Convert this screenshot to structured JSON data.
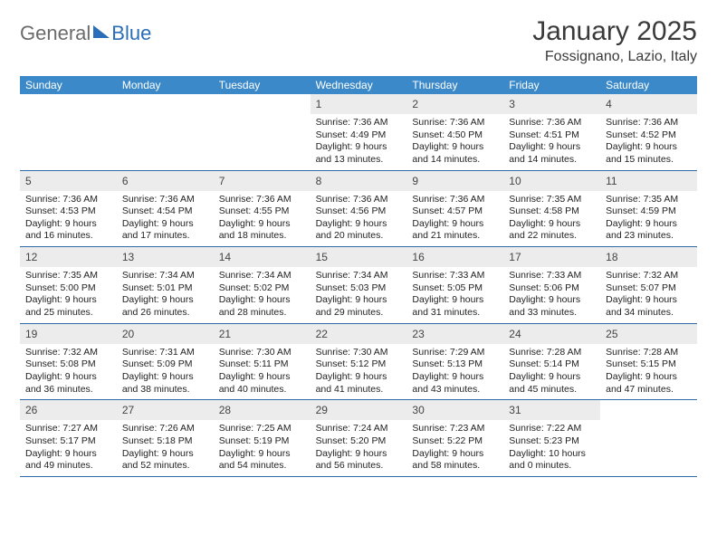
{
  "logo": {
    "word1": "General",
    "word2": "Blue"
  },
  "title": "January 2025",
  "subtitle": "Fossignano, Lazio, Italy",
  "colors": {
    "header_bg": "#3b89c9",
    "header_text": "#ffffff",
    "daynum_bg": "#ececec",
    "row_divider": "#2f6aa8",
    "logo_grey": "#6b6b6b",
    "logo_blue": "#2a6db8",
    "body_text": "#222222",
    "page_bg": "#ffffff"
  },
  "layout": {
    "columns": 7,
    "rows": 5,
    "cell_font_pt": 8,
    "header_font_pt": 9
  },
  "days_of_week": [
    "Sunday",
    "Monday",
    "Tuesday",
    "Wednesday",
    "Thursday",
    "Friday",
    "Saturday"
  ],
  "weeks": [
    [
      {
        "day": "",
        "sunrise": "",
        "sunset": "",
        "daylight": ""
      },
      {
        "day": "",
        "sunrise": "",
        "sunset": "",
        "daylight": ""
      },
      {
        "day": "",
        "sunrise": "",
        "sunset": "",
        "daylight": ""
      },
      {
        "day": "1",
        "sunrise": "Sunrise: 7:36 AM",
        "sunset": "Sunset: 4:49 PM",
        "daylight": "Daylight: 9 hours and 13 minutes."
      },
      {
        "day": "2",
        "sunrise": "Sunrise: 7:36 AM",
        "sunset": "Sunset: 4:50 PM",
        "daylight": "Daylight: 9 hours and 14 minutes."
      },
      {
        "day": "3",
        "sunrise": "Sunrise: 7:36 AM",
        "sunset": "Sunset: 4:51 PM",
        "daylight": "Daylight: 9 hours and 14 minutes."
      },
      {
        "day": "4",
        "sunrise": "Sunrise: 7:36 AM",
        "sunset": "Sunset: 4:52 PM",
        "daylight": "Daylight: 9 hours and 15 minutes."
      }
    ],
    [
      {
        "day": "5",
        "sunrise": "Sunrise: 7:36 AM",
        "sunset": "Sunset: 4:53 PM",
        "daylight": "Daylight: 9 hours and 16 minutes."
      },
      {
        "day": "6",
        "sunrise": "Sunrise: 7:36 AM",
        "sunset": "Sunset: 4:54 PM",
        "daylight": "Daylight: 9 hours and 17 minutes."
      },
      {
        "day": "7",
        "sunrise": "Sunrise: 7:36 AM",
        "sunset": "Sunset: 4:55 PM",
        "daylight": "Daylight: 9 hours and 18 minutes."
      },
      {
        "day": "8",
        "sunrise": "Sunrise: 7:36 AM",
        "sunset": "Sunset: 4:56 PM",
        "daylight": "Daylight: 9 hours and 20 minutes."
      },
      {
        "day": "9",
        "sunrise": "Sunrise: 7:36 AM",
        "sunset": "Sunset: 4:57 PM",
        "daylight": "Daylight: 9 hours and 21 minutes."
      },
      {
        "day": "10",
        "sunrise": "Sunrise: 7:35 AM",
        "sunset": "Sunset: 4:58 PM",
        "daylight": "Daylight: 9 hours and 22 minutes."
      },
      {
        "day": "11",
        "sunrise": "Sunrise: 7:35 AM",
        "sunset": "Sunset: 4:59 PM",
        "daylight": "Daylight: 9 hours and 23 minutes."
      }
    ],
    [
      {
        "day": "12",
        "sunrise": "Sunrise: 7:35 AM",
        "sunset": "Sunset: 5:00 PM",
        "daylight": "Daylight: 9 hours and 25 minutes."
      },
      {
        "day": "13",
        "sunrise": "Sunrise: 7:34 AM",
        "sunset": "Sunset: 5:01 PM",
        "daylight": "Daylight: 9 hours and 26 minutes."
      },
      {
        "day": "14",
        "sunrise": "Sunrise: 7:34 AM",
        "sunset": "Sunset: 5:02 PM",
        "daylight": "Daylight: 9 hours and 28 minutes."
      },
      {
        "day": "15",
        "sunrise": "Sunrise: 7:34 AM",
        "sunset": "Sunset: 5:03 PM",
        "daylight": "Daylight: 9 hours and 29 minutes."
      },
      {
        "day": "16",
        "sunrise": "Sunrise: 7:33 AM",
        "sunset": "Sunset: 5:05 PM",
        "daylight": "Daylight: 9 hours and 31 minutes."
      },
      {
        "day": "17",
        "sunrise": "Sunrise: 7:33 AM",
        "sunset": "Sunset: 5:06 PM",
        "daylight": "Daylight: 9 hours and 33 minutes."
      },
      {
        "day": "18",
        "sunrise": "Sunrise: 7:32 AM",
        "sunset": "Sunset: 5:07 PM",
        "daylight": "Daylight: 9 hours and 34 minutes."
      }
    ],
    [
      {
        "day": "19",
        "sunrise": "Sunrise: 7:32 AM",
        "sunset": "Sunset: 5:08 PM",
        "daylight": "Daylight: 9 hours and 36 minutes."
      },
      {
        "day": "20",
        "sunrise": "Sunrise: 7:31 AM",
        "sunset": "Sunset: 5:09 PM",
        "daylight": "Daylight: 9 hours and 38 minutes."
      },
      {
        "day": "21",
        "sunrise": "Sunrise: 7:30 AM",
        "sunset": "Sunset: 5:11 PM",
        "daylight": "Daylight: 9 hours and 40 minutes."
      },
      {
        "day": "22",
        "sunrise": "Sunrise: 7:30 AM",
        "sunset": "Sunset: 5:12 PM",
        "daylight": "Daylight: 9 hours and 41 minutes."
      },
      {
        "day": "23",
        "sunrise": "Sunrise: 7:29 AM",
        "sunset": "Sunset: 5:13 PM",
        "daylight": "Daylight: 9 hours and 43 minutes."
      },
      {
        "day": "24",
        "sunrise": "Sunrise: 7:28 AM",
        "sunset": "Sunset: 5:14 PM",
        "daylight": "Daylight: 9 hours and 45 minutes."
      },
      {
        "day": "25",
        "sunrise": "Sunrise: 7:28 AM",
        "sunset": "Sunset: 5:15 PM",
        "daylight": "Daylight: 9 hours and 47 minutes."
      }
    ],
    [
      {
        "day": "26",
        "sunrise": "Sunrise: 7:27 AM",
        "sunset": "Sunset: 5:17 PM",
        "daylight": "Daylight: 9 hours and 49 minutes."
      },
      {
        "day": "27",
        "sunrise": "Sunrise: 7:26 AM",
        "sunset": "Sunset: 5:18 PM",
        "daylight": "Daylight: 9 hours and 52 minutes."
      },
      {
        "day": "28",
        "sunrise": "Sunrise: 7:25 AM",
        "sunset": "Sunset: 5:19 PM",
        "daylight": "Daylight: 9 hours and 54 minutes."
      },
      {
        "day": "29",
        "sunrise": "Sunrise: 7:24 AM",
        "sunset": "Sunset: 5:20 PM",
        "daylight": "Daylight: 9 hours and 56 minutes."
      },
      {
        "day": "30",
        "sunrise": "Sunrise: 7:23 AM",
        "sunset": "Sunset: 5:22 PM",
        "daylight": "Daylight: 9 hours and 58 minutes."
      },
      {
        "day": "31",
        "sunrise": "Sunrise: 7:22 AM",
        "sunset": "Sunset: 5:23 PM",
        "daylight": "Daylight: 10 hours and 0 minutes."
      },
      {
        "day": "",
        "sunrise": "",
        "sunset": "",
        "daylight": ""
      }
    ]
  ]
}
